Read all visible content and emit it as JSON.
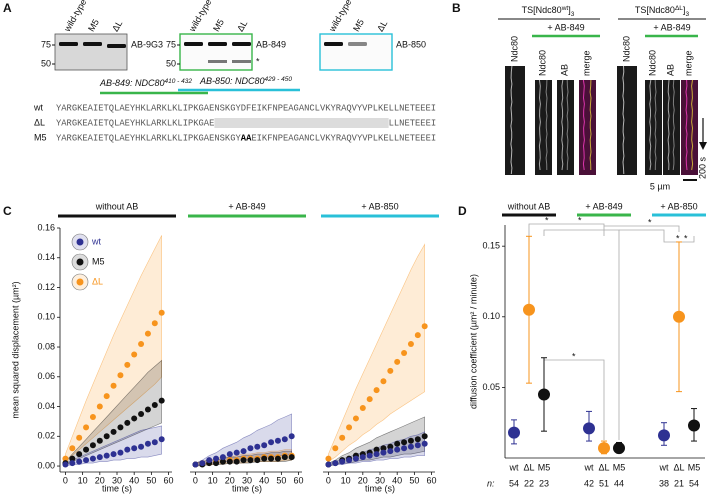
{
  "panel_a": {
    "letter": "A",
    "blots": [
      {
        "lanes": [
          "wild-type",
          "M5",
          "ΔL"
        ],
        "markers": [
          "75",
          "50"
        ],
        "antibody": "AB-9G3",
        "frame_color": "#555555"
      },
      {
        "lanes": [
          "wild-type",
          "M5",
          "ΔL"
        ],
        "markers": [
          "75",
          "50"
        ],
        "antibody": "AB-849",
        "note": "*",
        "frame_color": "#39b54a"
      },
      {
        "lanes": [
          "wild-type",
          "M5",
          "ΔL"
        ],
        "antibody": "AB-850",
        "frame_color": "#29c0d8"
      }
    ],
    "epitopes": [
      {
        "label": "AB-849: NDC80",
        "sup": "410 - 432",
        "color": "#39b54a"
      },
      {
        "label": "AB-850: NDC80",
        "sup": "429 - 450",
        "color": "#29c0d8"
      }
    ],
    "alignment": [
      {
        "name": "wt",
        "parts": [
          "YARGKEAIETQLAEYHKLARKLKLIPKGAENSKGYDFEIKFNPEAGANCLVKYRAQVYVPLKELLNETEEEI"
        ]
      },
      {
        "name": "ΔL",
        "parts": [
          "YARGKEAIETQLAEYHKLARKLKLIPKGAE",
          "LLNETEEEI"
        ]
      },
      {
        "name": "M5",
        "parts": [
          "YARGKEAIETQLAEYHKLARKLKLIPKGAENSKGY",
          "AA",
          "EIKFNPEAGANCLVKYRAQVYVPLKELLNETEEEI"
        ]
      }
    ]
  },
  "panel_b": {
    "letter": "B",
    "conditions": [
      {
        "title": [
          "TS[Ndc80",
          "wt",
          "]",
          "3"
        ],
        "treatment": "+ AB-849",
        "control_label": "Ndc80",
        "channels": [
          "Ndc80",
          "AB",
          "merge"
        ]
      },
      {
        "title": [
          "TS[Ndc80",
          "ΔL",
          "]",
          "3"
        ],
        "treatment": "+ AB-849",
        "control_label": "Ndc80",
        "channels": [
          "Ndc80",
          "AB",
          "merge"
        ]
      }
    ],
    "time_scale": "200 s",
    "length_scale": "5 µm"
  },
  "chart_data": [
    {
      "type": "scatter",
      "panel": "C",
      "header": "without AB",
      "header_color": "#111111",
      "legend": "upper left",
      "y_label": "mean squared displacement (µm²)",
      "x_label": "time (s)",
      "xlim": [
        -2,
        62
      ],
      "xticks": [
        0,
        10,
        20,
        30,
        40,
        50,
        60
      ],
      "ylim": [
        -0.004,
        0.16
      ],
      "yticks": [
        {
          "value": 0,
          "label": "0.00"
        },
        0.02,
        0.04,
        0.06,
        0.08,
        {
          "value": 0.1,
          "label": "0.10"
        },
        0.12,
        0.14,
        0.16
      ],
      "x": [
        0,
        4,
        8,
        12,
        16,
        20,
        24,
        28,
        32,
        36,
        40,
        44,
        48,
        52,
        56
      ],
      "series": [
        {
          "name": "wt",
          "color": "#2e3192",
          "values": [
            0.001,
            0.002,
            0.003,
            0.004,
            0.005,
            0.006,
            0.007,
            0.008,
            0.009,
            0.011,
            0.012,
            0.013,
            0.015,
            0.016,
            0.018
          ],
          "lower": [
            0,
            0.001,
            0.001,
            0.002,
            0.002,
            0.003,
            0.003,
            0.004,
            0.004,
            0.005,
            0.005,
            0.006,
            0.006,
            0.007,
            0.008
          ],
          "upper": [
            0.002,
            0.004,
            0.006,
            0.008,
            0.01,
            0.012,
            0.014,
            0.016,
            0.018,
            0.02,
            0.022,
            0.024,
            0.025,
            0.026,
            0.027
          ]
        },
        {
          "name": "M5",
          "color": "#111111",
          "values": [
            0.002,
            0.005,
            0.008,
            0.011,
            0.014,
            0.017,
            0.02,
            0.023,
            0.026,
            0.029,
            0.032,
            0.035,
            0.038,
            0.041,
            0.044
          ],
          "lower": [
            0.001,
            0.003,
            0.005,
            0.007,
            0.009,
            0.011,
            0.013,
            0.015,
            0.017,
            0.019,
            0.021,
            0.023,
            0.025,
            0.027,
            0.029
          ],
          "upper": [
            0.003,
            0.008,
            0.013,
            0.018,
            0.023,
            0.028,
            0.033,
            0.038,
            0.043,
            0.048,
            0.053,
            0.058,
            0.063,
            0.067,
            0.071
          ]
        },
        {
          "name": "ΔL",
          "color": "#f7941d",
          "values": [
            0.005,
            0.012,
            0.019,
            0.026,
            0.033,
            0.04,
            0.047,
            0.054,
            0.061,
            0.068,
            0.075,
            0.082,
            0.089,
            0.096,
            0.103
          ],
          "lower": [
            0.003,
            0.007,
            0.011,
            0.015,
            0.019,
            0.023,
            0.027,
            0.031,
            0.035,
            0.039,
            0.043,
            0.047,
            0.051,
            0.055,
            0.06
          ],
          "upper": [
            0.008,
            0.02,
            0.032,
            0.044,
            0.055,
            0.066,
            0.077,
            0.088,
            0.098,
            0.108,
            0.118,
            0.128,
            0.137,
            0.146,
            0.155
          ]
        }
      ]
    },
    {
      "type": "scatter",
      "header": "+ AB-849",
      "header_color": "#39b54a",
      "x_label": "time (s)",
      "xlim": [
        -2,
        62
      ],
      "xticks": [
        0,
        10,
        20,
        30,
        40,
        50,
        60
      ],
      "ylim": [
        -0.004,
        0.16
      ],
      "x": [
        0,
        4,
        8,
        12,
        16,
        20,
        24,
        28,
        32,
        36,
        40,
        44,
        48,
        52,
        56
      ],
      "series": [
        {
          "name": "wt",
          "color": "#2e3192",
          "values": [
            0.001,
            0.002,
            0.004,
            0.005,
            0.006,
            0.008,
            0.009,
            0.01,
            0.012,
            0.013,
            0.014,
            0.016,
            0.017,
            0.018,
            0.02
          ],
          "lower": [
            0,
            0.001,
            0.002,
            0.002,
            0.003,
            0.003,
            0.004,
            0.004,
            0.005,
            0.005,
            0.006,
            0.006,
            0.007,
            0.007,
            0.008
          ],
          "upper": [
            0.002,
            0.004,
            0.007,
            0.009,
            0.012,
            0.014,
            0.016,
            0.019,
            0.021,
            0.024,
            0.026,
            0.028,
            0.031,
            0.033,
            0.035
          ]
        },
        {
          "name": "M5",
          "color": "#111111",
          "values": [
            0.001,
            0.001,
            0.002,
            0.002,
            0.003,
            0.003,
            0.003,
            0.004,
            0.004,
            0.004,
            0.005,
            0.005,
            0.005,
            0.006,
            0.006
          ],
          "lower": [
            0,
            0,
            0.001,
            0.001,
            0.001,
            0.002,
            0.002,
            0.002,
            0.002,
            0.003,
            0.003,
            0.003,
            0.003,
            0.003,
            0.004
          ],
          "upper": [
            0.002,
            0.003,
            0.004,
            0.004,
            0.005,
            0.006,
            0.006,
            0.007,
            0.007,
            0.008,
            0.008,
            0.009,
            0.009,
            0.01,
            0.01
          ]
        },
        {
          "name": "ΔL",
          "color": "#f7941d",
          "values": [
            0.001,
            0.002,
            0.002,
            0.003,
            0.003,
            0.004,
            0.004,
            0.005,
            0.005,
            0.005,
            0.006,
            0.006,
            0.006,
            0.007,
            0.007
          ],
          "lower": [
            0,
            0.001,
            0.001,
            0.001,
            0.002,
            0.002,
            0.002,
            0.002,
            0.003,
            0.003,
            0.003,
            0.003,
            0.003,
            0.004,
            0.004
          ],
          "upper": [
            0.002,
            0.003,
            0.004,
            0.005,
            0.006,
            0.006,
            0.007,
            0.008,
            0.008,
            0.009,
            0.009,
            0.01,
            0.01,
            0.011,
            0.011
          ]
        }
      ]
    },
    {
      "type": "scatter",
      "header": "+ AB-850",
      "header_color": "#29c0d8",
      "x_label": "time (s)",
      "xlim": [
        -2,
        62
      ],
      "xticks": [
        0,
        10,
        20,
        30,
        40,
        50,
        60
      ],
      "ylim": [
        -0.004,
        0.16
      ],
      "x": [
        0,
        4,
        8,
        12,
        16,
        20,
        24,
        28,
        32,
        36,
        40,
        44,
        48,
        52,
        56
      ],
      "series": [
        {
          "name": "wt",
          "color": "#2e3192",
          "values": [
            0.001,
            0.002,
            0.003,
            0.004,
            0.005,
            0.006,
            0.007,
            0.008,
            0.009,
            0.01,
            0.011,
            0.012,
            0.013,
            0.014,
            0.015
          ],
          "lower": [
            0,
            0.001,
            0.001,
            0.002,
            0.002,
            0.003,
            0.003,
            0.004,
            0.004,
            0.005,
            0.005,
            0.006,
            0.006,
            0.007,
            0.007
          ],
          "upper": [
            0.002,
            0.003,
            0.005,
            0.006,
            0.008,
            0.009,
            0.011,
            0.012,
            0.014,
            0.015,
            0.017,
            0.018,
            0.02,
            0.021,
            0.023
          ]
        },
        {
          "name": "M5",
          "color": "#111111",
          "values": [
            0.001,
            0.002,
            0.004,
            0.005,
            0.007,
            0.008,
            0.009,
            0.011,
            0.012,
            0.013,
            0.015,
            0.016,
            0.017,
            0.018,
            0.02
          ],
          "lower": [
            0,
            0.001,
            0.002,
            0.002,
            0.003,
            0.004,
            0.004,
            0.005,
            0.006,
            0.006,
            0.007,
            0.008,
            0.008,
            0.009,
            0.01
          ],
          "upper": [
            0.002,
            0.004,
            0.007,
            0.009,
            0.012,
            0.014,
            0.016,
            0.019,
            0.021,
            0.023,
            0.025,
            0.027,
            0.029,
            0.031,
            0.033
          ]
        },
        {
          "name": "ΔL",
          "color": "#f7941d",
          "values": [
            0.005,
            0.012,
            0.019,
            0.026,
            0.032,
            0.039,
            0.045,
            0.051,
            0.057,
            0.064,
            0.07,
            0.076,
            0.082,
            0.088,
            0.094
          ],
          "lower": [
            0.003,
            0.006,
            0.01,
            0.014,
            0.017,
            0.021,
            0.024,
            0.028,
            0.031,
            0.035,
            0.038,
            0.041,
            0.044,
            0.047,
            0.05
          ],
          "upper": [
            0.008,
            0.019,
            0.03,
            0.041,
            0.052,
            0.062,
            0.072,
            0.082,
            0.092,
            0.102,
            0.112,
            0.122,
            0.132,
            0.141,
            0.149
          ]
        }
      ]
    },
    {
      "type": "dot",
      "panel": "D",
      "y_label": "diffusion coefficient (µm² / minute)",
      "ylim": [
        0,
        0.165
      ],
      "yticks": [
        0.05,
        {
          "value": 0.1,
          "label": "0.10"
        },
        0.15
      ],
      "groups": [
        {
          "name": "without AB",
          "color": "#111111"
        },
        {
          "name": "+ AB-849",
          "color": "#39b54a"
        },
        {
          "name": "+ AB-850",
          "color": "#29c0d8"
        }
      ],
      "categories": [
        "wt",
        "ΔL",
        "M5",
        "wt",
        "ΔL",
        "M5",
        "wt",
        "ΔL",
        "M5"
      ],
      "colors": [
        "#2e3192",
        "#f7941d",
        "#111111",
        "#2e3192",
        "#f7941d",
        "#111111",
        "#2e3192",
        "#f7941d",
        "#111111"
      ],
      "values": [
        0.018,
        0.105,
        0.045,
        0.021,
        0.007,
        0.007,
        0.016,
        0.1,
        0.023
      ],
      "lower": [
        0.01,
        0.053,
        0.019,
        0.012,
        0.003,
        0.004,
        0.009,
        0.047,
        0.012
      ],
      "upper": [
        0.027,
        0.157,
        0.071,
        0.033,
        0.012,
        0.011,
        0.025,
        0.153,
        0.035
      ],
      "n_label": "n:",
      "n": [
        54,
        22,
        23,
        42,
        51,
        44,
        38,
        21,
        54
      ],
      "significance": "*"
    }
  ]
}
